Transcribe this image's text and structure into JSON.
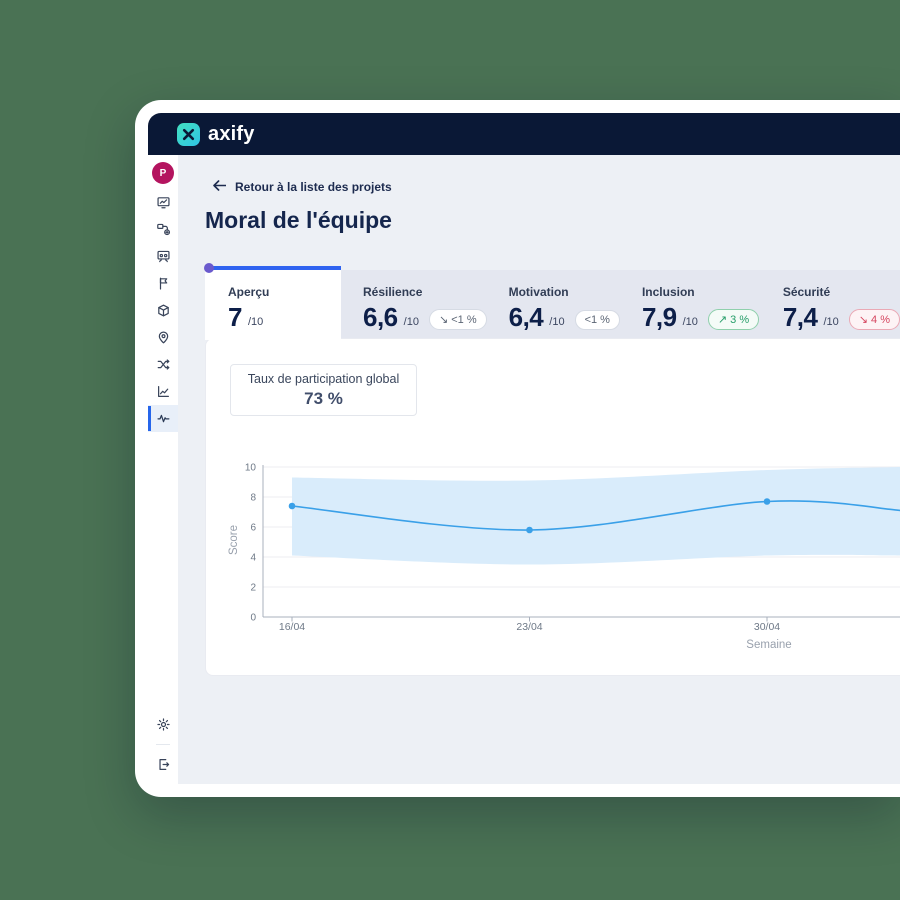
{
  "topbar": {
    "brand": "axify"
  },
  "sidebar": {
    "avatar_initial": "P",
    "items": [
      {
        "name": "dashboard",
        "icon": "presentation-chart",
        "active": false
      },
      {
        "name": "flow",
        "icon": "flow-plus",
        "active": false
      },
      {
        "name": "team",
        "icon": "team-board",
        "active": false
      },
      {
        "name": "flags",
        "icon": "flag",
        "active": false
      },
      {
        "name": "packages",
        "icon": "package",
        "active": false
      },
      {
        "name": "locations",
        "icon": "map-pin",
        "active": false
      },
      {
        "name": "workflows",
        "icon": "shuffle",
        "active": false
      },
      {
        "name": "metrics",
        "icon": "trend-chart",
        "active": false
      },
      {
        "name": "team-morale",
        "icon": "pulse",
        "active": true
      }
    ],
    "bottom": [
      {
        "name": "settings",
        "icon": "gear"
      },
      {
        "name": "logout",
        "icon": "logout"
      }
    ]
  },
  "header": {
    "back_label": "Retour à la liste des projets",
    "title": "Moral de l'équipe"
  },
  "tabs": [
    {
      "label": "Aperçu",
      "score": "7",
      "den": "/10",
      "active": true,
      "badge": null
    },
    {
      "label": "Résilience",
      "score": "6,6",
      "den": "/10",
      "active": false,
      "badge": {
        "arrow": "↘",
        "text": "<1 %",
        "tone": "neutral"
      }
    },
    {
      "label": "Motivation",
      "score": "6,4",
      "den": "/10",
      "active": false,
      "badge": {
        "arrow": "",
        "text": "<1 %",
        "tone": "neutral"
      }
    },
    {
      "label": "Inclusion",
      "score": "7,9",
      "den": "/10",
      "active": false,
      "badge": {
        "arrow": "↗",
        "text": "3 %",
        "tone": "positive"
      }
    },
    {
      "label": "Sécurité",
      "score": "7,4",
      "den": "/10",
      "active": false,
      "badge": {
        "arrow": "↘",
        "text": "4 %",
        "tone": "negative"
      }
    }
  ],
  "participation": {
    "label": "Taux de participation global",
    "value": "73 %"
  },
  "chart_data": {
    "type": "line",
    "categories": [
      "16/04",
      "23/04",
      "30/04"
    ],
    "line_values": [
      7.4,
      5.8,
      7.7
    ],
    "band_upper": [
      9.3,
      9.1,
      9.8
    ],
    "band_lower": [
      4.1,
      3.5,
      4.1
    ],
    "right_edge_continuation": {
      "line": 7.1,
      "upper": 10.0,
      "lower": 4.1
    },
    "xlabel": "Semaine",
    "ylabel": "Score",
    "ylim": [
      0,
      10
    ],
    "y_ticks": [
      0,
      2,
      4,
      6,
      8,
      10
    ],
    "grid": "horizontal",
    "legend": "none",
    "line_color": "#3aa0e8",
    "band_color": "#d9ecfb"
  },
  "colors": {
    "page_bg": "#4a7254",
    "topbar_bg": "#0a1836",
    "tab_accent": "#2f63f0",
    "tab_accent_dot": "#6a5acd",
    "avatar_bg": "#b4145f",
    "positive": "#259d68",
    "negative": "#d5455f",
    "neutral": "#5b6574"
  }
}
